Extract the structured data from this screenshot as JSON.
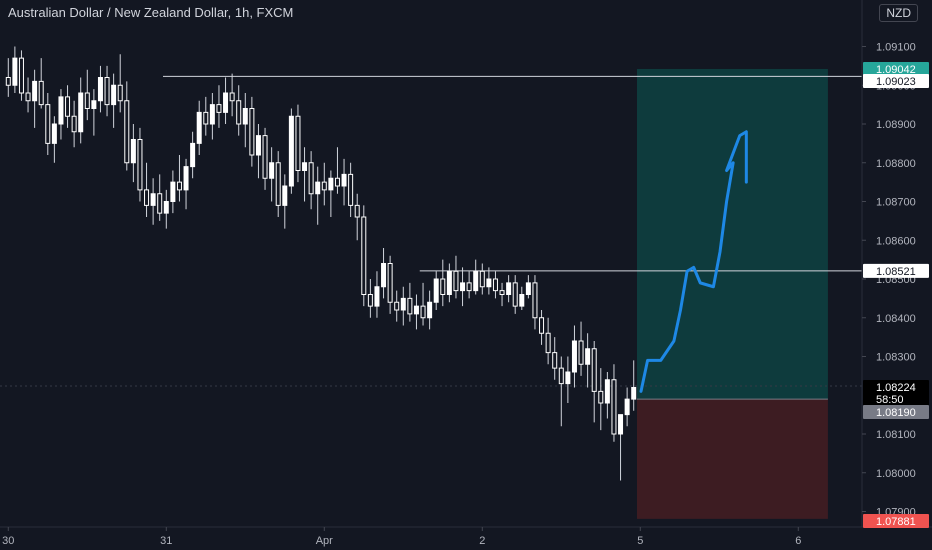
{
  "header": {
    "title": "Australian Dollar / New Zealand Dollar, 1h, FXCM",
    "currency": "NZD"
  },
  "price_axis": {
    "ticks": [
      "1.09100",
      "1.09000",
      "1.08900",
      "1.08800",
      "1.08700",
      "1.08600",
      "1.08500",
      "1.08400",
      "1.08300",
      "1.08100",
      "1.08000",
      "1.07900"
    ],
    "labels": [
      {
        "name": "take-profit-label",
        "text": "1.09042",
        "bg": "#26a69a",
        "fg": "#ffffff",
        "price": 1.09042
      },
      {
        "name": "resistance-level-label",
        "text": "1.09023",
        "bg": "#ffffff",
        "fg": "#131722",
        "price": 1.09023
      },
      {
        "name": "entry-level-label",
        "text": "1.08521",
        "bg": "#ffffff",
        "fg": "#131722",
        "price": 1.08521
      },
      {
        "name": "current-price-label",
        "text": "1.08224",
        "bg": "#000000",
        "fg": "#ffffff",
        "price": 1.08224
      },
      {
        "name": "countdown-label",
        "text": "58:50",
        "bg": "#000000",
        "fg": "#ffffff",
        "price": 1.082
      },
      {
        "name": "position-entry-label",
        "text": "1.08190",
        "bg": "#787b86",
        "fg": "#ffffff",
        "price": 1.0819
      },
      {
        "name": "stop-loss-label",
        "text": "1.07881",
        "bg": "#ef5350",
        "fg": "#ffffff",
        "price": 1.07881
      }
    ]
  },
  "time_axis": {
    "labels": [
      {
        "text": "30",
        "bar": 0
      },
      {
        "text": "31",
        "bar": 24
      },
      {
        "text": "Apr",
        "bar": 48
      },
      {
        "text": "2",
        "bar": 72
      },
      {
        "text": "5",
        "bar": 96
      },
      {
        "text": "6",
        "bar": 120
      }
    ]
  },
  "chart_data": {
    "type": "candlestick",
    "symbol": "AUDNZD",
    "interval": "1h",
    "ylim": [
      1.0786,
      1.0922
    ],
    "bar_count": 96,
    "candles": [
      [
        1.0902,
        1.0907,
        1.0897,
        1.09
      ],
      [
        1.09,
        1.091,
        1.0898,
        1.0907
      ],
      [
        1.0907,
        1.0909,
        1.0896,
        1.0898
      ],
      [
        1.0898,
        1.0902,
        1.0893,
        1.0896
      ],
      [
        1.0896,
        1.0904,
        1.0889,
        1.0901
      ],
      [
        1.0901,
        1.0907,
        1.0894,
        1.0895
      ],
      [
        1.0895,
        1.0898,
        1.0882,
        1.0885
      ],
      [
        1.0885,
        1.0892,
        1.088,
        1.089
      ],
      [
        1.089,
        1.0899,
        1.0886,
        1.0897
      ],
      [
        1.0897,
        1.09,
        1.0889,
        1.0892
      ],
      [
        1.0892,
        1.0896,
        1.0884,
        1.0888
      ],
      [
        1.0888,
        1.0902,
        1.0885,
        1.0898
      ],
      [
        1.0898,
        1.0904,
        1.0891,
        1.0894
      ],
      [
        1.0894,
        1.0899,
        1.0887,
        1.0896
      ],
      [
        1.0896,
        1.0905,
        1.0893,
        1.0902
      ],
      [
        1.0902,
        1.0905,
        1.0892,
        1.0895
      ],
      [
        1.0895,
        1.0903,
        1.0889,
        1.09
      ],
      [
        1.09,
        1.0908,
        1.0893,
        1.0896
      ],
      [
        1.0896,
        1.0901,
        1.0878,
        1.088
      ],
      [
        1.088,
        1.089,
        1.0875,
        1.0886
      ],
      [
        1.0886,
        1.0889,
        1.087,
        1.0873
      ],
      [
        1.0873,
        1.088,
        1.0866,
        1.0869
      ],
      [
        1.0869,
        1.0876,
        1.0864,
        1.0872
      ],
      [
        1.0872,
        1.0877,
        1.0865,
        1.0867
      ],
      [
        1.0867,
        1.0873,
        1.0863,
        1.087
      ],
      [
        1.087,
        1.0878,
        1.0867,
        1.0875
      ],
      [
        1.0875,
        1.0882,
        1.087,
        1.0873
      ],
      [
        1.0873,
        1.0881,
        1.0868,
        1.0879
      ],
      [
        1.0879,
        1.0888,
        1.0876,
        1.0885
      ],
      [
        1.0885,
        1.0896,
        1.0882,
        1.0893
      ],
      [
        1.0893,
        1.0897,
        1.0887,
        1.089
      ],
      [
        1.089,
        1.0898,
        1.0886,
        1.0895
      ],
      [
        1.0895,
        1.09,
        1.0889,
        1.0893
      ],
      [
        1.0893,
        1.0902,
        1.089,
        1.0898
      ],
      [
        1.0898,
        1.0903,
        1.0892,
        1.0896
      ],
      [
        1.0896,
        1.09,
        1.0887,
        1.089
      ],
      [
        1.089,
        1.0898,
        1.0884,
        1.0894
      ],
      [
        1.0894,
        1.0897,
        1.0879,
        1.0882
      ],
      [
        1.0882,
        1.089,
        1.0876,
        1.0887
      ],
      [
        1.0887,
        1.0889,
        1.0873,
        1.0876
      ],
      [
        1.0876,
        1.0884,
        1.087,
        1.088
      ],
      [
        1.088,
        1.0883,
        1.0866,
        1.0869
      ],
      [
        1.0869,
        1.0877,
        1.0863,
        1.0874
      ],
      [
        1.0874,
        1.0894,
        1.0872,
        1.0892
      ],
      [
        1.0892,
        1.0895,
        1.0875,
        1.0878
      ],
      [
        1.0878,
        1.0884,
        1.087,
        1.088
      ],
      [
        1.088,
        1.0883,
        1.0868,
        1.0872
      ],
      [
        1.0872,
        1.0879,
        1.0864,
        1.0875
      ],
      [
        1.0875,
        1.088,
        1.0869,
        1.0873
      ],
      [
        1.0873,
        1.0878,
        1.0866,
        1.0876
      ],
      [
        1.0876,
        1.0884,
        1.0872,
        1.0874
      ],
      [
        1.0874,
        1.0881,
        1.0869,
        1.0877
      ],
      [
        1.0877,
        1.088,
        1.0866,
        1.0869
      ],
      [
        1.0869,
        1.0872,
        1.086,
        1.0866
      ],
      [
        1.0866,
        1.0869,
        1.0843,
        1.0846
      ],
      [
        1.0846,
        1.085,
        1.084,
        1.0843
      ],
      [
        1.0843,
        1.0852,
        1.084,
        1.0848
      ],
      [
        1.0848,
        1.0858,
        1.0845,
        1.0854
      ],
      [
        1.0854,
        1.0856,
        1.0841,
        1.0844
      ],
      [
        1.0844,
        1.0847,
        1.0839,
        1.0842
      ],
      [
        1.0842,
        1.0848,
        1.0838,
        1.0845
      ],
      [
        1.0845,
        1.0849,
        1.0839,
        1.0841
      ],
      [
        1.0841,
        1.0846,
        1.0837,
        1.0843
      ],
      [
        1.0843,
        1.0849,
        1.0838,
        1.084
      ],
      [
        1.084,
        1.0847,
        1.0837,
        1.0844
      ],
      [
        1.0844,
        1.0852,
        1.0842,
        1.085
      ],
      [
        1.085,
        1.0855,
        1.0843,
        1.0846
      ],
      [
        1.0846,
        1.0854,
        1.0844,
        1.0852
      ],
      [
        1.0852,
        1.0856,
        1.0845,
        1.0847
      ],
      [
        1.0847,
        1.0853,
        1.0843,
        1.0849
      ],
      [
        1.0849,
        1.0852,
        1.0845,
        1.0847
      ],
      [
        1.0847,
        1.0855,
        1.0846,
        1.0852
      ],
      [
        1.0852,
        1.0854,
        1.0846,
        1.0848
      ],
      [
        1.0848,
        1.0853,
        1.0846,
        1.085
      ],
      [
        1.085,
        1.0852,
        1.0845,
        1.0847
      ],
      [
        1.0847,
        1.0849,
        1.0843,
        1.0846
      ],
      [
        1.0846,
        1.0851,
        1.0844,
        1.0849
      ],
      [
        1.0849,
        1.0851,
        1.0841,
        1.0843
      ],
      [
        1.0843,
        1.0848,
        1.0842,
        1.0846
      ],
      [
        1.0846,
        1.0851,
        1.0845,
        1.0849
      ],
      [
        1.0849,
        1.0851,
        1.0837,
        1.084
      ],
      [
        1.084,
        1.0842,
        1.0833,
        1.0836
      ],
      [
        1.0836,
        1.084,
        1.0828,
        1.0831
      ],
      [
        1.0831,
        1.0835,
        1.0824,
        1.0827
      ],
      [
        1.0827,
        1.083,
        1.0812,
        1.0823
      ],
      [
        1.0823,
        1.083,
        1.0818,
        1.0826
      ],
      [
        1.0826,
        1.0838,
        1.0822,
        1.0834
      ],
      [
        1.0834,
        1.0839,
        1.0825,
        1.0828
      ],
      [
        1.0828,
        1.0836,
        1.0822,
        1.0832
      ],
      [
        1.0832,
        1.0834,
        1.0813,
        1.0821
      ],
      [
        1.0821,
        1.0827,
        1.0811,
        1.0818
      ],
      [
        1.0818,
        1.0826,
        1.0814,
        1.0824
      ],
      [
        1.0824,
        1.0828,
        1.0808,
        1.081
      ],
      [
        1.081,
        1.0815,
        1.0798,
        1.0815
      ],
      [
        1.0815,
        1.0822,
        1.0812,
        1.0819
      ],
      [
        1.0819,
        1.0829,
        1.0816,
        1.0822
      ]
    ],
    "levels": [
      {
        "name": "resistance-line",
        "price": 1.09023,
        "from_bar": 24,
        "to_bar": 150
      },
      {
        "name": "entry-line",
        "price": 1.08521,
        "from_bar": 63,
        "to_bar": 150
      }
    ],
    "position": {
      "type": "long",
      "start_bar": 96,
      "end_bar": 125,
      "entry": 1.0819,
      "take_profit": 1.09042,
      "stop_loss": 1.07881
    },
    "drawing": {
      "name": "projected-path",
      "points": [
        [
          96,
          1.0821
        ],
        [
          97,
          1.0829
        ],
        [
          99,
          1.0829
        ],
        [
          101,
          1.0834
        ],
        [
          102,
          1.0842
        ],
        [
          103,
          1.0852
        ],
        [
          104,
          1.0853
        ],
        [
          105,
          1.0849
        ],
        [
          107,
          1.0848
        ],
        [
          108,
          1.0857
        ],
        [
          109,
          1.087
        ],
        [
          110,
          1.088
        ],
        [
          109,
          1.0878
        ],
        [
          111,
          1.0887
        ],
        [
          112,
          1.0888
        ],
        [
          112,
          1.0875
        ]
      ],
      "color": "#1e88e5"
    },
    "colors": {
      "up": "#ffffff",
      "down": "#ffffff",
      "profit_zone": "#0e3b3d",
      "loss_zone": "#3d1c22"
    }
  }
}
